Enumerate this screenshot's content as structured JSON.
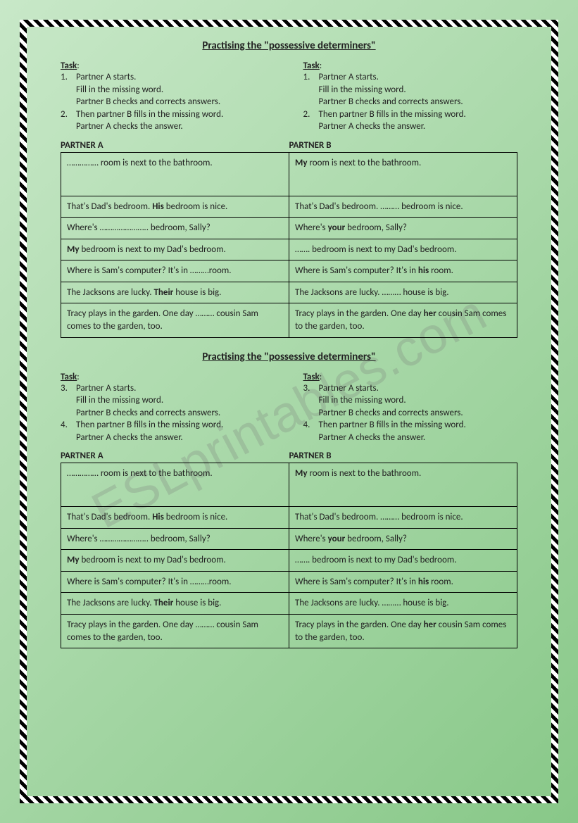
{
  "watermark": "ESLprintables.com",
  "sections": [
    {
      "title": "Practising the \"possessive determiners\"",
      "taskLabel": "Task",
      "taskCols": [
        [
          {
            "num": "1.",
            "lines": [
              "Partner A starts.",
              "Fill in the missing word.",
              "Partner B checks and corrects answers."
            ]
          },
          {
            "num": "2.",
            "lines": [
              "Then partner B fills in the missing word.",
              "Partner A checks the answer."
            ]
          }
        ],
        [
          {
            "num": "1.",
            "lines": [
              "Partner A starts.",
              "Fill in the missing word.",
              "Partner B checks and corrects answers."
            ]
          },
          {
            "num": "2.",
            "lines": [
              "Then partner B fills in the missing word.",
              "Partner A checks the answer."
            ]
          }
        ]
      ],
      "partnerA": "PARTNER A",
      "partnerB": "PARTNER B",
      "rows": [
        {
          "a": "…………… room is next to the bathroom.",
          "b": "<b>My</b> room is next to the bathroom."
        },
        {
          "a": "That's Dad's bedroom. <b>His</b> bedroom is nice.",
          "b": "That's Dad's bedroom. ……… bedroom is nice."
        },
        {
          "a": "Where's ………………….. bedroom, Sally?",
          "b": "Where's <b>your</b> bedroom, Sally?"
        },
        {
          "a": "<b>My</b> bedroom is next to my Dad's bedroom.",
          "b": "……. bedroom is next to my Dad's bedroom."
        },
        {
          "a": "Where is Sam's computer? It's in ………room.",
          "b": "Where is Sam's computer? It's in <b>his</b> room."
        },
        {
          "a": "The Jacksons are lucky. <b>Their</b> house is big.",
          "b": "The Jacksons are lucky. ……… house is big."
        },
        {
          "a": "Tracy plays in the garden. One day ……… cousin Sam comes to the garden, too.",
          "b": "Tracy plays in the garden. One day <b>her</b> cousin Sam comes to the garden, too."
        }
      ]
    },
    {
      "title": "Practising the \"possessive determiners\"",
      "taskLabel": "Task",
      "taskCols": [
        [
          {
            "num": "3.",
            "lines": [
              "Partner A starts.",
              "Fill in the missing word.",
              "Partner B checks and corrects answers."
            ]
          },
          {
            "num": "4.",
            "lines": [
              "Then partner B fills in the missing word.",
              "Partner A checks the answer."
            ]
          }
        ],
        [
          {
            "num": "3.",
            "lines": [
              "Partner A starts.",
              "Fill in the missing word.",
              "Partner B checks and corrects answers."
            ]
          },
          {
            "num": "4.",
            "lines": [
              "Then partner B fills in the missing word.",
              "Partner A checks the answer."
            ]
          }
        ]
      ],
      "partnerA": "PARTNER A",
      "partnerB": "PARTNER B",
      "rows": [
        {
          "a": "…………… room is next to the bathroom.",
          "b": "<b>My</b> room is next to the bathroom."
        },
        {
          "a": "That's Dad's bedroom. <b>His</b> bedroom is nice.",
          "b": "That's Dad's bedroom. ……… bedroom is nice."
        },
        {
          "a": "Where's ………………….. bedroom, Sally?",
          "b": "Where's <b>your</b> bedroom, Sally?"
        },
        {
          "a": "<b>My</b> bedroom is next to my Dad's bedroom.",
          "b": "……. bedroom is next to my Dad's bedroom."
        },
        {
          "a": "Where is Sam's computer? It's in ………room.",
          "b": "Where is Sam's computer? It's in <b>his</b> room."
        },
        {
          "a": "The Jacksons are lucky. <b>Their</b> house is big.",
          "b": "The Jacksons are lucky. ……… house is big."
        },
        {
          "a": "Tracy plays in the garden. One day ……… cousin Sam comes to the garden, too.",
          "b": "Tracy plays in the garden. One day <b>her</b> cousin Sam comes to the garden, too."
        }
      ]
    }
  ]
}
